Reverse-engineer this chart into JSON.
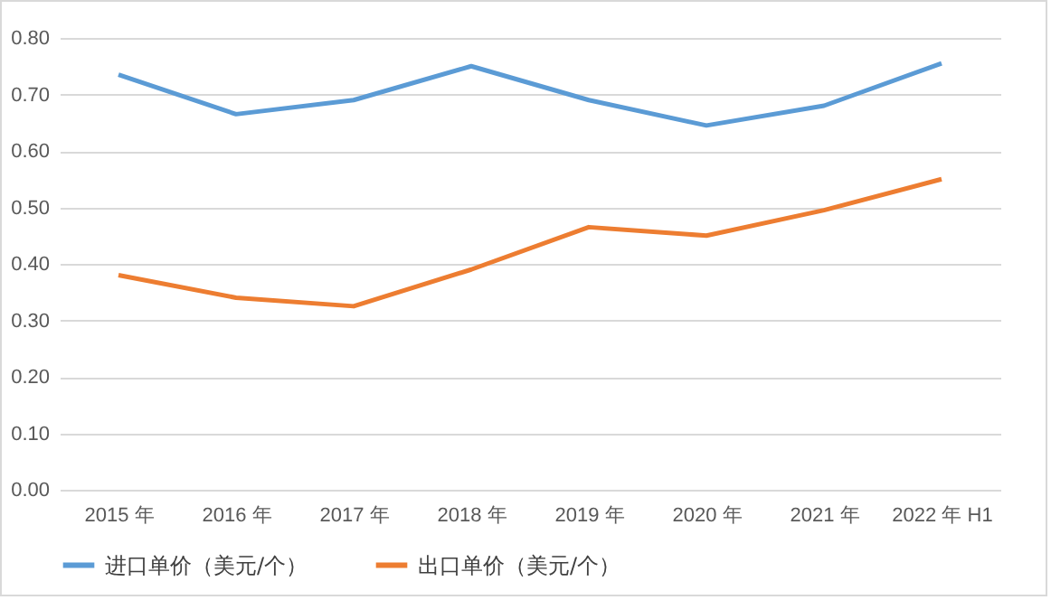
{
  "chart_data": {
    "type": "line",
    "categories": [
      "2015 年",
      "2016 年",
      "2017 年",
      "2018 年",
      "2019 年",
      "2020 年",
      "2021 年",
      "2022 年 H1"
    ],
    "series": [
      {
        "name": "进口单价（美元/个）",
        "color": "#5b9bd5",
        "values": [
          0.735,
          0.665,
          0.69,
          0.75,
          0.69,
          0.645,
          0.68,
          0.755
        ]
      },
      {
        "name": "出口单价（美元/个）",
        "color": "#ed7d31",
        "values": [
          0.38,
          0.34,
          0.325,
          0.39,
          0.465,
          0.45,
          0.495,
          0.55
        ]
      }
    ],
    "ylim": [
      0,
      0.8
    ],
    "yticks": [
      {
        "value": 0,
        "label": "0.00"
      },
      {
        "value": 0.1,
        "label": "0.10"
      },
      {
        "value": 0.2,
        "label": "0.20"
      },
      {
        "value": 0.3,
        "label": "0.30"
      },
      {
        "value": 0.4,
        "label": "0.40"
      },
      {
        "value": 0.5,
        "label": "0.50"
      },
      {
        "value": 0.6,
        "label": "0.60"
      },
      {
        "value": 0.7,
        "label": "0.70"
      },
      {
        "value": 0.8,
        "label": "0.80"
      }
    ],
    "grid": "y",
    "legend": "bottom",
    "marker": "none",
    "line_style": "solid"
  }
}
